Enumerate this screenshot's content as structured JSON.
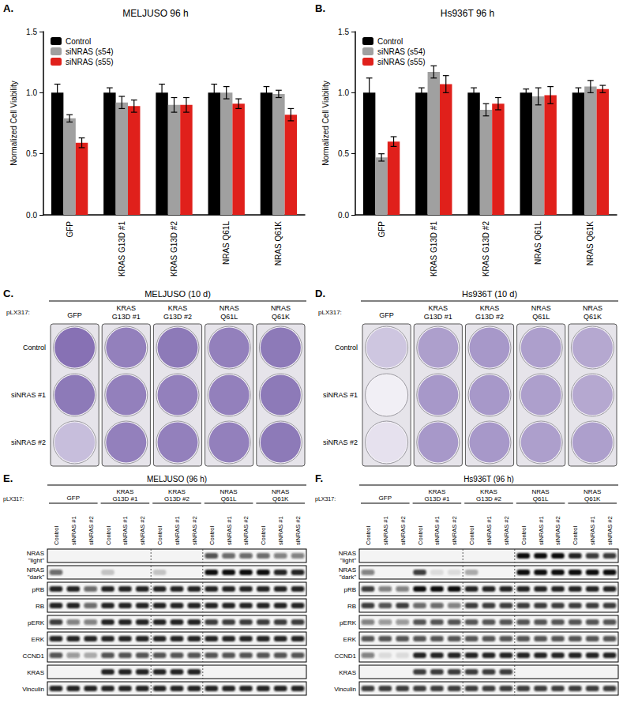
{
  "chart_data": [
    {
      "type": "bar",
      "annotations": [
        "A."
      ],
      "title": "MELJUSO 96 h",
      "ylabel": "Normalized Cell Viability",
      "categories": [
        "GFP",
        "KRAS G13D #1",
        "KRAS G13D #2",
        "NRAS Q61L",
        "NRAS Q61K"
      ],
      "series": [
        {
          "name": "Control",
          "color": "#000000",
          "values": [
            1.0,
            1.0,
            1.0,
            1.0,
            1.0
          ],
          "errors": [
            0.07,
            0.04,
            0.07,
            0.07,
            0.05
          ]
        },
        {
          "name": "siNRAS (s54)",
          "color": "#a0a0a0",
          "values": [
            0.79,
            0.92,
            0.9,
            1.0,
            0.99
          ],
          "errors": [
            0.03,
            0.05,
            0.06,
            0.05,
            0.03
          ]
        },
        {
          "name": "siNRAS (s55)",
          "color": "#e0201b",
          "values": [
            0.59,
            0.89,
            0.9,
            0.91,
            0.82
          ],
          "errors": [
            0.04,
            0.05,
            0.06,
            0.04,
            0.05
          ]
        }
      ],
      "ylim": [
        0,
        1.5
      ],
      "yticks": [
        {
          "value": 0,
          "label": "0.0"
        },
        {
          "value": 0.5,
          "label": "0.5"
        },
        {
          "value": 1,
          "label": "1.0"
        },
        {
          "value": 1.5,
          "label": "1.5"
        }
      ],
      "legend": "upper left",
      "grid": false
    },
    {
      "type": "bar",
      "annotations": [
        "B."
      ],
      "title": "Hs936T 96 h",
      "ylabel": "Normalized Cell Viability",
      "categories": [
        "GFP",
        "KRAS G13D #1",
        "KRAS G13D #2",
        "NRAS Q61L",
        "NRAS Q61K"
      ],
      "series": [
        {
          "name": "Control",
          "color": "#000000",
          "values": [
            1.0,
            1.0,
            1.0,
            1.0,
            1.0
          ],
          "errors": [
            0.12,
            0.04,
            0.04,
            0.03,
            0.04
          ]
        },
        {
          "name": "siNRAS (s54)",
          "color": "#a0a0a0",
          "values": [
            0.47,
            1.17,
            0.86,
            0.97,
            1.05
          ],
          "errors": [
            0.03,
            0.05,
            0.05,
            0.07,
            0.05
          ]
        },
        {
          "name": "siNRAS (s55)",
          "color": "#e0201b",
          "values": [
            0.6,
            1.07,
            0.91,
            0.98,
            1.03
          ],
          "errors": [
            0.04,
            0.07,
            0.05,
            0.07,
            0.03
          ]
        }
      ],
      "ylim": [
        0,
        1.5
      ],
      "yticks": [
        {
          "value": 0,
          "label": "0.0"
        },
        {
          "value": 0.5,
          "label": "0.5"
        },
        {
          "value": 1,
          "label": "1.0"
        },
        {
          "value": 1.5,
          "label": "1.5"
        }
      ],
      "legend": "upper left",
      "grid": false
    }
  ],
  "colony_panels": [
    {
      "panel": "C.",
      "title": "MELJUSO (10 d)",
      "vector_label": "pLX317:",
      "columns": [
        "GFP",
        "KRAS G13D #1",
        "KRAS G13D #2",
        "NRAS Q61L",
        "NRAS Q61K"
      ],
      "rows": [
        "Control",
        "siNRAS #1",
        "siNRAS #2"
      ],
      "staining": [
        [
          0.85,
          0.75,
          0.8,
          0.75,
          0.8
        ],
        [
          0.8,
          0.75,
          0.75,
          0.75,
          0.8
        ],
        [
          0.35,
          0.75,
          0.75,
          0.75,
          0.8
        ]
      ]
    },
    {
      "panel": "D.",
      "title": "Hs936T (10 d)",
      "vector_label": "pLX317:",
      "columns": [
        "GFP",
        "KRAS G13D #1",
        "KRAS G13D #2",
        "NRAS Q61L",
        "NRAS Q61K"
      ],
      "rows": [
        "Control",
        "siNRAS #1",
        "siNRAS #2"
      ],
      "staining": [
        [
          0.3,
          0.55,
          0.6,
          0.55,
          0.5
        ],
        [
          0.03,
          0.6,
          0.6,
          0.55,
          0.5
        ],
        [
          0.12,
          0.6,
          0.6,
          0.55,
          0.55
        ]
      ]
    }
  ],
  "blot_panels": [
    {
      "panel": "E.",
      "title": "MELJUSO (96 h)",
      "vector_label": "pLX317:",
      "groups": [
        "GFP",
        "KRAS G13D #1",
        "KRAS G13D #2",
        "NRAS Q61L",
        "NRAS Q61K"
      ],
      "lanes": [
        "Control",
        "siNRAS #1",
        "siNRAS #2"
      ],
      "rows": [
        "NRAS \"light\"",
        "NRAS \"dark\"",
        "pRB",
        "RB",
        "pERK",
        "ERK",
        "CCND1",
        "KRAS",
        "Vinculin"
      ],
      "bands": [
        [
          0,
          0,
          0,
          0,
          0,
          0,
          0,
          0,
          0,
          0.7,
          0.6,
          0.6,
          0.6,
          0.5,
          0.5
        ],
        [
          0.6,
          0,
          0,
          0.2,
          0,
          0,
          0.2,
          0,
          0,
          1,
          1,
          1,
          1,
          0.9,
          0.9
        ],
        [
          0.9,
          0.9,
          0.6,
          0.9,
          0.9,
          0.9,
          0.9,
          0.9,
          0.9,
          0.9,
          0.9,
          0.9,
          0.9,
          0.9,
          0.9
        ],
        [
          0.9,
          0.9,
          0.6,
          0.9,
          0.9,
          0.9,
          0.9,
          0.9,
          0.9,
          0.9,
          0.9,
          0.9,
          0.9,
          0.9,
          0.9
        ],
        [
          0.8,
          0.5,
          0.5,
          0.9,
          0.9,
          0.9,
          0.9,
          0.9,
          0.9,
          0.8,
          0.8,
          0.8,
          0.8,
          0.8,
          0.8
        ],
        [
          0.9,
          0.9,
          0.9,
          0.9,
          0.9,
          0.9,
          0.9,
          0.9,
          0.9,
          0.9,
          0.9,
          0.9,
          0.9,
          0.9,
          0.9
        ],
        [
          0.7,
          0.4,
          0.3,
          0.7,
          0.7,
          0.7,
          0.7,
          0.7,
          0.7,
          0.7,
          0.7,
          0.7,
          0.7,
          0.7,
          0.7
        ],
        [
          0,
          0,
          0,
          0.9,
          0.9,
          0.9,
          0.9,
          0.9,
          0.9,
          0,
          0,
          0,
          0,
          0,
          0
        ],
        [
          0.9,
          0.9,
          0.9,
          0.9,
          0.9,
          0.9,
          0.9,
          0.9,
          0.9,
          0.9,
          0.9,
          0.9,
          0.9,
          0.9,
          0.9
        ]
      ]
    },
    {
      "panel": "F.",
      "title": "Hs936T (96 h)",
      "vector_label": "pLX317:",
      "groups": [
        "GFP",
        "KRAS G13D #1",
        "KRAS G13D #2",
        "NRAS Q61L",
        "NRAS Q61K"
      ],
      "lanes": [
        "Control",
        "siNRAS #1",
        "siNRAS #2"
      ],
      "rows": [
        "NRAS \"light\"",
        "NRAS \"dark\"",
        "pRB",
        "RB",
        "pERK",
        "ERK",
        "CCND1",
        "KRAS",
        "Vinculin"
      ],
      "bands": [
        [
          0,
          0,
          0,
          0,
          0,
          0,
          0,
          0,
          0,
          1,
          1,
          1,
          0.9,
          0.8,
          0.8
        ],
        [
          0.5,
          0,
          0,
          0.8,
          0.1,
          0.1,
          0.3,
          0,
          0,
          1,
          1,
          1,
          1,
          1,
          1
        ],
        [
          0.8,
          0.5,
          0.5,
          1,
          1,
          1,
          0.9,
          0.9,
          0.9,
          0.9,
          0.9,
          0.9,
          0.9,
          0.9,
          0.9
        ],
        [
          0.8,
          0.7,
          0.8,
          0.6,
          0.6,
          0.5,
          0.8,
          0.8,
          0.8,
          0.8,
          0.8,
          0.8,
          0.8,
          0.8,
          0.8
        ],
        [
          0.5,
          0.4,
          0.4,
          0.7,
          0.7,
          0.7,
          0.7,
          0.7,
          0.7,
          0.7,
          0.7,
          0.7,
          0.7,
          0.7,
          0.7
        ],
        [
          0.7,
          0.7,
          0.7,
          0.7,
          0.7,
          0.7,
          0.7,
          0.7,
          0.7,
          0.7,
          0.7,
          0.7,
          0.7,
          0.7,
          0.7
        ],
        [
          0.5,
          0.1,
          0.1,
          0.9,
          0.9,
          0.9,
          0.9,
          0.9,
          0.9,
          0.9,
          0.9,
          0.9,
          0.9,
          0.9,
          0.9
        ],
        [
          0,
          0,
          0,
          0.8,
          0.8,
          0.8,
          0.8,
          0.8,
          0.8,
          0,
          0,
          0,
          0,
          0,
          0
        ],
        [
          0.8,
          0.8,
          0.8,
          0.8,
          0.8,
          0.8,
          0.8,
          0.8,
          0.8,
          0.8,
          0.8,
          0.8,
          0.8,
          0.8,
          0.8
        ]
      ]
    }
  ]
}
